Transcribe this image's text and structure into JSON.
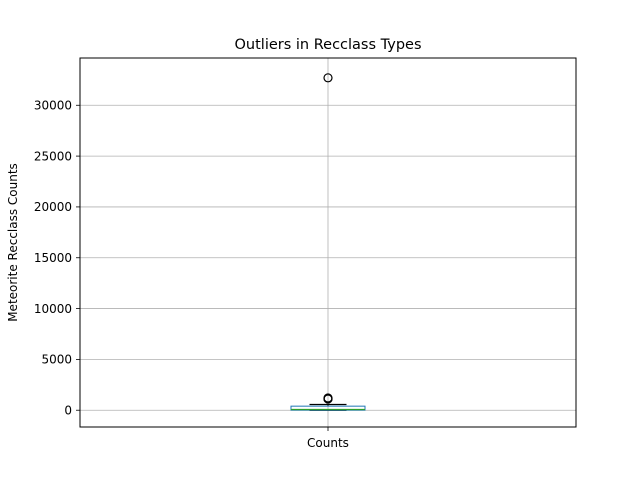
{
  "chart_data": {
    "type": "box",
    "title": "Outliers in Recclass Types",
    "xlabel": "",
    "ylabel": "Meteorite Recclass Counts",
    "categories": [
      "Counts"
    ],
    "ylim": [
      -1650,
      34650
    ],
    "yticks": [
      0,
      5000,
      10000,
      15000,
      20000,
      25000,
      30000
    ],
    "ytick_labels": [
      "0",
      "5000",
      "10000",
      "15000",
      "20000",
      "25000",
      "30000"
    ],
    "grid": true,
    "box": {
      "whisker_low": 1,
      "q1": 8,
      "median": 70,
      "q3": 400,
      "whisker_high": 560,
      "outliers": [
        32700,
        1200,
        1150,
        1100
      ]
    },
    "colors": {
      "box": "#1f77b4",
      "median": "#2ca02c",
      "whisker": "#000000",
      "grid": "#b0b0b0"
    }
  }
}
